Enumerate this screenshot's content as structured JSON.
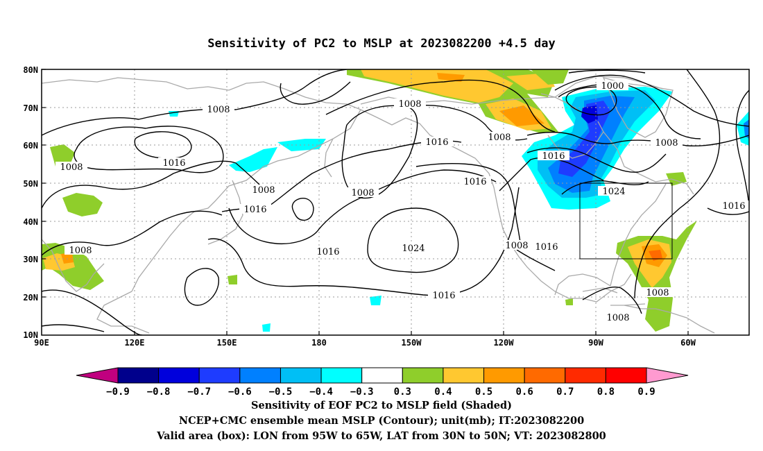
{
  "title": "Sensitivity of PC2 to MSLP at 2023082200 +4.5 day",
  "map": {
    "lon_labels": [
      "90E",
      "120E",
      "150E",
      "180",
      "150W",
      "120W",
      "90W",
      "60W"
    ],
    "lat_labels": [
      "80N",
      "70N",
      "60N",
      "50N",
      "40N",
      "30N",
      "20N",
      "10N"
    ],
    "contour_labels": [
      "1008",
      "1016",
      "1008",
      "1008",
      "1016",
      "1008",
      "1016",
      "1008",
      "1008",
      "1016",
      "1024",
      "1016",
      "1016",
      "1016",
      "1000",
      "1008",
      "1016",
      "1024",
      "1008",
      "1016",
      "1008",
      "1008"
    ],
    "valid_box": {
      "lon_from": "95W",
      "lon_to": "65W",
      "lat_from": "30N",
      "lat_to": "50N"
    }
  },
  "colorbar": {
    "tick_labels": [
      "−0.9",
      "−0.8",
      "−0.7",
      "−0.6",
      "−0.5",
      "−0.4",
      "−0.3",
      "0.3",
      "0.4",
      "0.5",
      "0.6",
      "0.7",
      "0.8",
      "0.9"
    ],
    "colors": [
      "#c0007f",
      "#00008c",
      "#0000dc",
      "#1e3cff",
      "#0080ff",
      "#00bff5",
      "#00ffff",
      "#ffffff",
      "#8fce2b",
      "#ffc830",
      "#ff9a00",
      "#ff6a00",
      "#ff2a00",
      "#ff0000",
      "#ff9ad0"
    ]
  },
  "captions": {
    "line1": "Sensitivity of EOF PC2 to MSLP field (Shaded)",
    "line2": "NCEP+CMC ensemble mean MSLP (Contour); unit(mb); IT:2023082200",
    "line3": "Valid area (box): LON from 95W to 65W, LAT from 30N to 50N; VT: 2023082800"
  }
}
